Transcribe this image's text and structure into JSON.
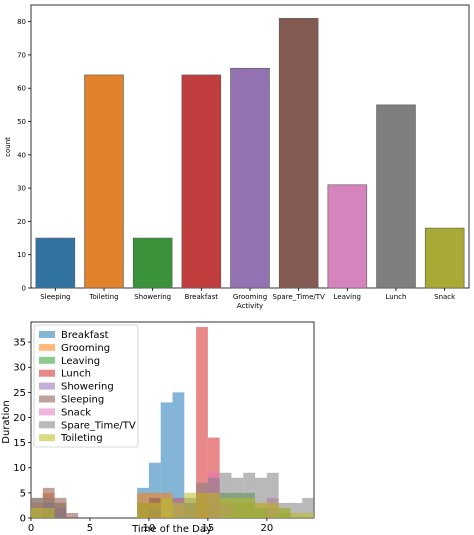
{
  "chart_data": [
    {
      "type": "bar",
      "xlabel": "Activity",
      "ylabel": "count",
      "ylim": [
        0,
        85
      ],
      "yticks": [
        0,
        10,
        20,
        30,
        40,
        50,
        60,
        70,
        80
      ],
      "grid": false,
      "categories": [
        "Sleeping",
        "Toileting",
        "Showering",
        "Breakfast",
        "Grooming",
        "Spare_Time/TV",
        "Leaving",
        "Lunch",
        "Snack"
      ],
      "values": [
        15,
        64,
        15,
        64,
        66,
        81,
        31,
        55,
        18
      ],
      "colors": [
        "#3274a1",
        "#e1812c",
        "#3a923a",
        "#c03d3e",
        "#9372b2",
        "#845b53",
        "#d684bd",
        "#7f7f7f",
        "#a9aa35"
      ]
    },
    {
      "type": "histogram",
      "xlabel": "Time of the Day",
      "ylabel": "Duration",
      "xlim": [
        0,
        24
      ],
      "ylim": [
        0,
        39
      ],
      "xticks": [
        0,
        5,
        10,
        15,
        20
      ],
      "yticks": [
        0,
        5,
        10,
        15,
        20,
        25,
        30,
        35
      ],
      "legend_position": "top-left",
      "grid": false,
      "series": [
        {
          "name": "Breakfast",
          "color": "#1f77b4",
          "bins": [
            [
              9,
              10,
              6
            ],
            [
              10,
              11,
              11
            ],
            [
              11,
              12,
              23
            ],
            [
              12,
              13,
              25
            ],
            [
              13,
              14,
              3
            ]
          ]
        },
        {
          "name": "Grooming",
          "color": "#ff7f0e",
          "bins": [
            [
              0,
              1,
              3
            ],
            [
              1,
              2,
              5
            ],
            [
              2,
              3,
              3
            ],
            [
              9,
              10,
              5
            ],
            [
              10,
              11,
              5
            ],
            [
              11,
              12,
              5
            ],
            [
              12,
              13,
              4
            ],
            [
              13,
              14,
              2
            ],
            [
              14,
              15,
              5
            ],
            [
              15,
              16,
              5
            ],
            [
              16,
              17,
              3
            ],
            [
              17,
              18,
              3
            ],
            [
              18,
              19,
              3
            ],
            [
              19,
              20,
              3
            ],
            [
              20,
              21,
              3
            ],
            [
              21,
              22,
              1
            ]
          ]
        },
        {
          "name": "Leaving",
          "color": "#2ca02c",
          "bins": [
            [
              15,
              16,
              3
            ],
            [
              16,
              17,
              5
            ],
            [
              17,
              18,
              5
            ],
            [
              18,
              19,
              5
            ],
            [
              19,
              20,
              2
            ],
            [
              20,
              21,
              2
            ],
            [
              21,
              22,
              2
            ]
          ]
        },
        {
          "name": "Lunch",
          "color": "#d62728",
          "bins": [
            [
              14,
              15,
              38
            ],
            [
              15,
              16,
              16
            ]
          ]
        },
        {
          "name": "Showering",
          "color": "#9467bd",
          "bins": [
            [
              1,
              2,
              3
            ],
            [
              2,
              3,
              2
            ],
            [
              10,
              11,
              2
            ],
            [
              12,
              13,
              4
            ],
            [
              13,
              14,
              3
            ]
          ]
        },
        {
          "name": "Sleeping",
          "color": "#8c564b",
          "bins": [
            [
              0,
              1,
              4
            ],
            [
              1,
              2,
              6
            ],
            [
              2,
              3,
              4
            ],
            [
              3,
              4,
              1
            ],
            [
              9,
              10,
              3
            ],
            [
              10,
              11,
              4
            ]
          ]
        },
        {
          "name": "Snack",
          "color": "#e377c2",
          "bins": [
            [
              15,
              16,
              9
            ],
            [
              16,
              17,
              3
            ],
            [
              20,
              21,
              4
            ]
          ]
        },
        {
          "name": "Spare_Time/TV",
          "color": "#7f7f7f",
          "bins": [
            [
              0,
              1,
              4
            ],
            [
              1,
              2,
              4
            ],
            [
              2,
              3,
              3
            ],
            [
              13,
              14,
              4
            ],
            [
              14,
              15,
              7
            ],
            [
              15,
              16,
              8
            ],
            [
              16,
              17,
              9
            ],
            [
              17,
              18,
              8
            ],
            [
              18,
              19,
              9
            ],
            [
              19,
              20,
              8
            ],
            [
              20,
              21,
              9
            ],
            [
              21,
              22,
              3
            ],
            [
              22,
              23,
              3
            ],
            [
              23,
              24,
              4
            ]
          ]
        },
        {
          "name": "Toileting",
          "color": "#bcbd22",
          "bins": [
            [
              0,
              1,
              2
            ],
            [
              1,
              2,
              2
            ],
            [
              9,
              10,
              3
            ],
            [
              10,
              11,
              3
            ],
            [
              11,
              12,
              4
            ],
            [
              12,
              13,
              3
            ],
            [
              13,
              14,
              5
            ],
            [
              14,
              15,
              5
            ],
            [
              15,
              16,
              5
            ],
            [
              16,
              17,
              4
            ],
            [
              17,
              18,
              4
            ],
            [
              18,
              19,
              4
            ],
            [
              19,
              20,
              3
            ],
            [
              20,
              21,
              3
            ],
            [
              21,
              22,
              2
            ],
            [
              22,
              23,
              1
            ],
            [
              23,
              24,
              1
            ]
          ]
        }
      ]
    }
  ]
}
